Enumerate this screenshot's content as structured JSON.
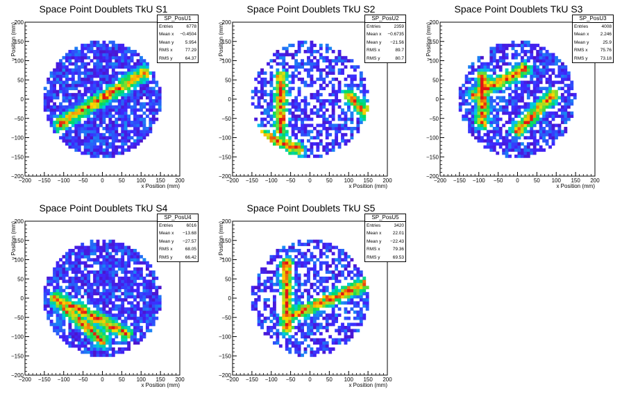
{
  "chart_data": [
    {
      "type": "heatmap",
      "title": "Space Point Doublets TkU S1",
      "xlabel": "x Position (mm)",
      "ylabel": "y Position (mm)",
      "xlim": [
        -200,
        200
      ],
      "ylim": [
        -200,
        200
      ],
      "ticks": [
        "−200",
        "−150",
        "−100",
        "−50",
        "0",
        "50",
        "100",
        "150",
        "200"
      ],
      "stats": {
        "name": "SP_PosU1",
        "rows": [
          [
            "Entries",
            "6778"
          ],
          [
            "Mean x",
            "−0.4504"
          ],
          [
            "Mean y",
            "5.954"
          ],
          [
            "RMS x",
            "77.29"
          ],
          [
            "RMS y",
            "64.37"
          ]
        ]
      },
      "tracks": [
        {
          "x1": -110,
          "y1": -65,
          "x2": 110,
          "y2": 70
        }
      ]
    },
    {
      "type": "heatmap",
      "title": "Space Point Doublets TkU S2",
      "xlabel": "x Position (mm)",
      "ylabel": "y Position (mm)",
      "xlim": [
        -200,
        200
      ],
      "ylim": [
        -200,
        200
      ],
      "ticks": [
        "−200",
        "−150",
        "−100",
        "−50",
        "0",
        "50",
        "100",
        "150",
        "200"
      ],
      "stats": {
        "name": "SP_PosU2",
        "rows": [
          [
            "Entries",
            "2359"
          ],
          [
            "Mean x",
            "−0.6735"
          ],
          [
            "Mean y",
            "−21.56"
          ],
          [
            "RMS x",
            "89.7"
          ],
          [
            "RMS y",
            "80.7"
          ]
        ]
      },
      "tracks": [
        {
          "x1": -75,
          "y1": 60,
          "x2": -75,
          "y2": -80
        },
        {
          "x1": -130,
          "y1": -90,
          "x2": -30,
          "y2": -130
        },
        {
          "x1": 100,
          "y1": 10,
          "x2": 150,
          "y2": -40
        }
      ]
    },
    {
      "type": "heatmap",
      "title": "Space Point Doublets TkU S3",
      "xlabel": "x Position (mm)",
      "ylabel": "y Position (mm)",
      "xlim": [
        -200,
        200
      ],
      "ylim": [
        -200,
        200
      ],
      "ticks": [
        "−200",
        "−150",
        "−100",
        "−50",
        "0",
        "50",
        "100",
        "150",
        "200"
      ],
      "stats": {
        "name": "SP_PosU3",
        "rows": [
          [
            "Entries",
            "4008"
          ],
          [
            "Mean x",
            "2.246"
          ],
          [
            "Mean y",
            "25.9"
          ],
          [
            "RMS x",
            "75.76"
          ],
          [
            "RMS y",
            "73.18"
          ]
        ]
      },
      "tracks": [
        {
          "x1": -110,
          "y1": 10,
          "x2": 20,
          "y2": 80
        },
        {
          "x1": -90,
          "y1": 60,
          "x2": -90,
          "y2": -60
        },
        {
          "x1": 0,
          "y1": -80,
          "x2": 90,
          "y2": 10
        }
      ]
    },
    {
      "type": "heatmap",
      "title": "Space Point Doublets TkU S4",
      "xlabel": "x Position (mm)",
      "ylabel": "y Position (mm)",
      "xlim": [
        -200,
        200
      ],
      "ylim": [
        -200,
        200
      ],
      "ticks": [
        "−200",
        "−150",
        "−100",
        "−50",
        "0",
        "50",
        "100",
        "150",
        "200"
      ],
      "stats": {
        "name": "SP_PosU4",
        "rows": [
          [
            "Entries",
            "6016"
          ],
          [
            "Mean x",
            "−13.68"
          ],
          [
            "Mean y",
            "−27.57"
          ],
          [
            "RMS x",
            "68.05"
          ],
          [
            "RMS y",
            "66.42"
          ]
        ]
      },
      "tracks": [
        {
          "x1": -120,
          "y1": 0,
          "x2": 60,
          "y2": -90
        },
        {
          "x1": -110,
          "y1": -10,
          "x2": 0,
          "y2": -110
        }
      ]
    },
    {
      "type": "heatmap",
      "title": "Space Point Doublets TkU S5",
      "xlabel": "x Position (mm)",
      "ylabel": "y Position (mm)",
      "xlim": [
        -200,
        200
      ],
      "ylim": [
        -200,
        200
      ],
      "ticks": [
        "−200",
        "−150",
        "−100",
        "−50",
        "0",
        "50",
        "100",
        "150",
        "200"
      ],
      "stats": {
        "name": "SP_PosU5",
        "rows": [
          [
            "Entries",
            "3420"
          ],
          [
            "Mean x",
            "22.01"
          ],
          [
            "Mean y",
            "−22.43"
          ],
          [
            "RMS x",
            "79.36"
          ],
          [
            "RMS y",
            "69.53"
          ]
        ]
      },
      "tracks": [
        {
          "x1": -60,
          "y1": 90,
          "x2": -60,
          "y2": -80
        },
        {
          "x1": -60,
          "y1": -50,
          "x2": 150,
          "y2": 40
        }
      ]
    }
  ]
}
